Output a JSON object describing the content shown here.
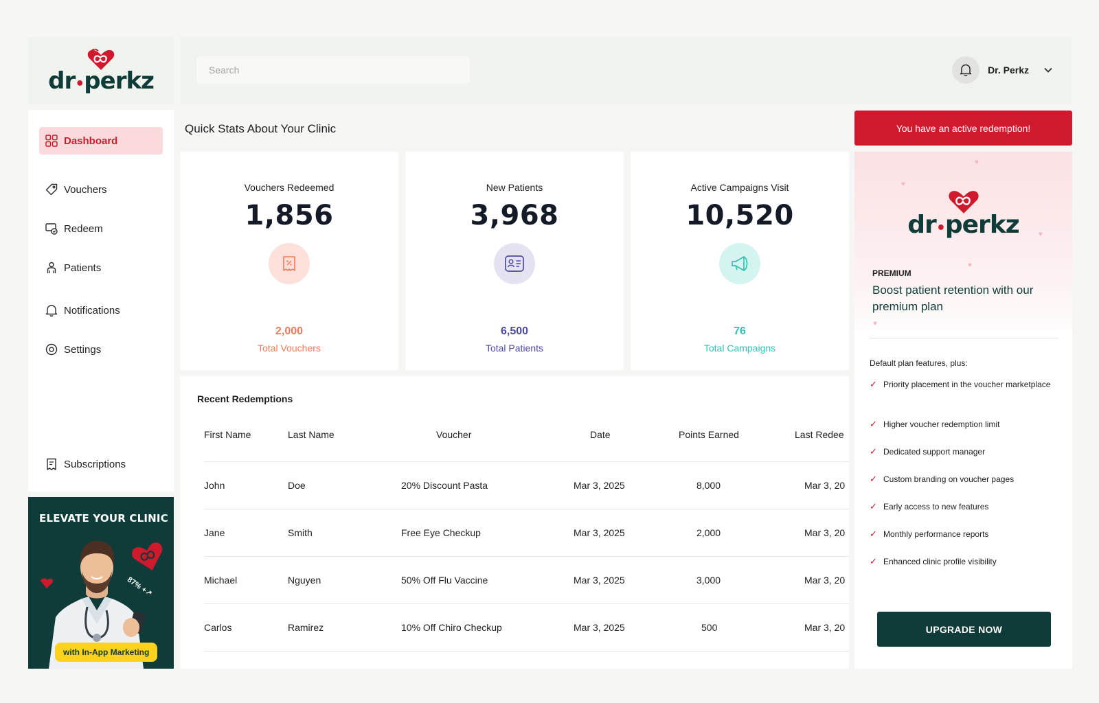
{
  "brand": {
    "name": "dr.perkz",
    "word_left": "dr",
    "word_right": "perkz",
    "accent": "#d0192d",
    "dark": "#0f3c38"
  },
  "header": {
    "search_placeholder": "Search",
    "user_name": "Dr. Perkz"
  },
  "sidebar": {
    "items": [
      {
        "label": "Dashboard",
        "icon": "grid-icon",
        "active": true
      },
      {
        "label": "Vouchers",
        "icon": "tag-icon"
      },
      {
        "label": "Redeem",
        "icon": "redeem-icon"
      },
      {
        "label": "Patients",
        "icon": "patients-icon"
      },
      {
        "label": "Notifications",
        "icon": "bell-icon"
      },
      {
        "label": "Settings",
        "icon": "gear-icon"
      },
      {
        "label": "Subscriptions",
        "icon": "receipt-icon"
      }
    ]
  },
  "promo": {
    "title": "ELEVATE YOUR CLINIC",
    "stat": "87% +↗",
    "pill": "with In-App Marketing"
  },
  "main": {
    "section_title": "Quick Stats About Your Clinic",
    "stats": [
      {
        "label": "Vouchers Redeemed",
        "value": "1,856",
        "total": "2,000",
        "total_label": "Total Vouchers",
        "color": "#f0795c",
        "icon_bg": "#fde0da",
        "icon": "voucher-icon"
      },
      {
        "label": "New Patients",
        "value": "3,968",
        "total": "6,500",
        "total_label": "Total Patients",
        "color": "#4d4aa0",
        "icon_bg": "#e5e3f1",
        "icon": "id-card-icon"
      },
      {
        "label": "Active Campaigns Visit",
        "value": "10,520",
        "total": "76",
        "total_label": "Total Campaigns",
        "color": "#2ec4b6",
        "icon_bg": "#d4f4ef",
        "icon": "megaphone-icon"
      }
    ],
    "table": {
      "title": "Recent Redemptions",
      "headers": [
        "First Name",
        "Last Name",
        "Voucher",
        "Date",
        "Points Earned",
        "Last Redee"
      ],
      "rows": [
        [
          "John",
          "Doe",
          "20% Discount Pasta",
          "Mar 3, 2025",
          "8,000",
          "Mar 3, 20"
        ],
        [
          "Jane",
          "Smith",
          "Free Eye Checkup",
          "Mar 3, 2025",
          "2,000",
          "Mar 3, 20"
        ],
        [
          "Michael",
          "Nguyen",
          "50% Off Flu Vaccine",
          "Mar 3, 2025",
          "3,000",
          "Mar 3, 20"
        ],
        [
          "Carlos",
          "Ramirez",
          "10% Off Chiro Checkup",
          "Mar 3, 2025",
          "500",
          "Mar 3, 20"
        ]
      ]
    }
  },
  "right_panel": {
    "alert": "You have an active redemption!",
    "tag": "PREMIUM",
    "headline": "Boost patient retention with our premium plan",
    "features_intro": "Default plan features, plus:",
    "features": [
      "Priority placement in the voucher marketplace",
      "Higher voucher redemption limit",
      "Dedicated support manager",
      "Custom branding on voucher pages",
      "Early access to new features",
      "Monthly performance reports",
      "Enhanced clinic profile visibility"
    ],
    "cta": "UPGRADE NOW"
  }
}
